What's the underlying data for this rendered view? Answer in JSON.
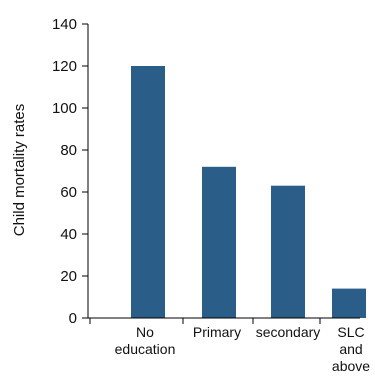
{
  "chart_data": {
    "type": "bar",
    "title": "",
    "xlabel": "",
    "ylabel": "Child mortality rates",
    "categories": [
      [
        "No",
        "education"
      ],
      [
        "Primary"
      ],
      [
        "secondary"
      ],
      [
        "SLC",
        "and",
        "above"
      ]
    ],
    "values": [
      120,
      72,
      63,
      14
    ],
    "ylim": [
      0,
      140
    ],
    "yticks": [
      "0",
      "20",
      "40",
      "60",
      "80",
      "100",
      "120",
      "140"
    ],
    "grid": false,
    "colors": {
      "bar": "#2a5d87",
      "axis": "#000000"
    }
  }
}
